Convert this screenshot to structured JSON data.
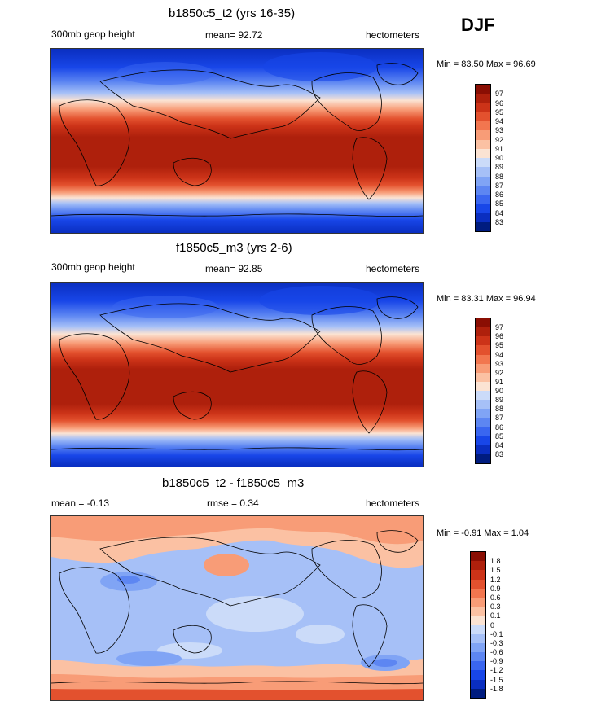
{
  "header": {
    "season": "DJF"
  },
  "colors": {
    "main_scale": [
      "#001c7f",
      "#0a2ec0",
      "#1846e8",
      "#3a66f0",
      "#5d86f2",
      "#80a4f5",
      "#a6c0f7",
      "#cbdbf9",
      "#fbe3d3",
      "#fbc1a3",
      "#f89c77",
      "#f2764f",
      "#e3512e",
      "#cc3318",
      "#ae200c",
      "#8a0e03"
    ],
    "diff_scale": [
      "#001c7f",
      "#0a2ec0",
      "#1846e8",
      "#3a66f0",
      "#5d86f2",
      "#80a4f5",
      "#a6c0f7",
      "#cbdbf9",
      "#fbe3d3",
      "#fbc1a3",
      "#f89c77",
      "#f2764f",
      "#e3512e",
      "#cc3318",
      "#ae200c",
      "#8a0e03"
    ]
  },
  "chart_data": [
    {
      "type": "heatmap",
      "title": "b1850c5_t2 (yrs 16-35)",
      "variable": "300mb geop height",
      "mean_text": "mean=  92.72",
      "mean": 92.72,
      "units": "hectometers",
      "minmax_text": "Min =  83.50 Max =  96.69",
      "min": 83.5,
      "max": 96.69,
      "colorbar_levels": [
        "97",
        "96",
        "95",
        "94",
        "93",
        "92",
        "91",
        "90",
        "89",
        "88",
        "87",
        "86",
        "85",
        "84",
        "83"
      ]
    },
    {
      "type": "heatmap",
      "title": "f1850c5_m3 (yrs 2-6)",
      "variable": "300mb geop height",
      "mean_text": "mean=  92.85",
      "mean": 92.85,
      "units": "hectometers",
      "minmax_text": "Min =  83.31 Max =  96.94",
      "min": 83.31,
      "max": 96.94,
      "colorbar_levels": [
        "97",
        "96",
        "95",
        "94",
        "93",
        "92",
        "91",
        "90",
        "89",
        "88",
        "87",
        "86",
        "85",
        "84",
        "83"
      ]
    },
    {
      "type": "heatmap",
      "title": "b1850c5_t2 - f1850c5_m3",
      "mean_text": "mean =  -0.13",
      "mean": -0.13,
      "rmse_text": "rmse =   0.34",
      "rmse": 0.34,
      "units": "hectometers",
      "minmax_text": "Min =  -0.91 Max =   1.04",
      "min": -0.91,
      "max": 1.04,
      "colorbar_levels": [
        "1.8",
        "1.5",
        "1.2",
        "0.9",
        "0.6",
        "0.3",
        "0.1",
        "0",
        "-0.1",
        "-0.3",
        "-0.6",
        "-0.9",
        "-1.2",
        "-1.5",
        "-1.8"
      ]
    }
  ]
}
